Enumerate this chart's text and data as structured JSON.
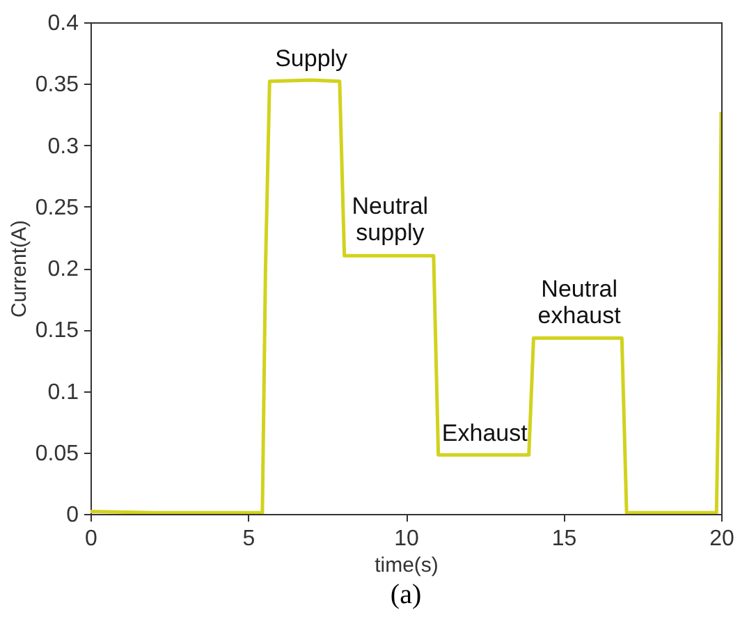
{
  "chart_data": {
    "type": "line",
    "xlabel": "time(s)",
    "ylabel": "Current(A)",
    "x": [
      0,
      2,
      4,
      5.45,
      5.55,
      5.68,
      7,
      7.9,
      8.05,
      9.5,
      10.88,
      11.03,
      12.5,
      13.9,
      14.05,
      15.5,
      16.85,
      17.0,
      18.5,
      19.85,
      19.95,
      20
    ],
    "series": [
      {
        "color": "#d2d21e",
        "values": [
          0.002,
          0.001,
          0.001,
          0.001,
          0.2,
          0.352,
          0.353,
          0.352,
          0.21,
          0.21,
          0.21,
          0.048,
          0.048,
          0.048,
          0.143,
          0.143,
          0.143,
          0.001,
          0.001,
          0.001,
          0.15,
          0.327
        ]
      }
    ],
    "xlim": [
      0,
      20
    ],
    "xticks": [
      0,
      5,
      10,
      15,
      20
    ],
    "ylim": [
      0,
      0.4
    ],
    "yticks": [
      0,
      0.05,
      0.1,
      0.15,
      0.2,
      0.25,
      0.3,
      0.35,
      0.4
    ],
    "grid": false,
    "marker": "none",
    "line_style": "solid",
    "annotations": [
      {
        "text": "Supply",
        "x": 7,
        "y": 0.353
      },
      {
        "text": "Neutral\nsupply",
        "x": 9.5,
        "y": 0.21
      },
      {
        "text": "Exhaust",
        "x": 12.5,
        "y": 0.048
      },
      {
        "text": "Neutral\nexhaust",
        "x": 15.5,
        "y": 0.143
      },
      "(a)"
    ]
  }
}
